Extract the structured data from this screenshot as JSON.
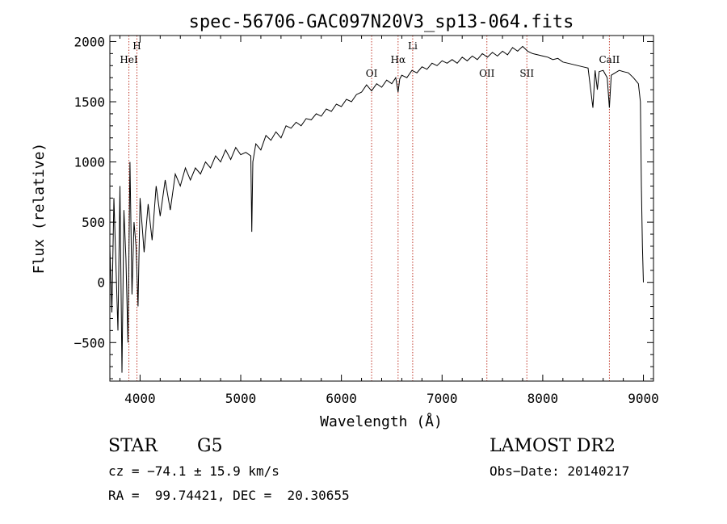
{
  "chart_data": {
    "type": "line",
    "title": "spec-56706-GAC097N20V3_sp13-064.fits",
    "xlabel": "Wavelength (Å)",
    "ylabel": "Flux (relative)",
    "xlim": [
      3700,
      9100
    ],
    "ylim": [
      -820,
      2050
    ],
    "xticks": [
      4000,
      5000,
      6000,
      7000,
      8000,
      9000
    ],
    "yticks": [
      -500,
      0,
      500,
      1000,
      1500,
      2000
    ],
    "grid": false,
    "series": [
      {
        "x": [
          3700,
          3720,
          3740,
          3760,
          3780,
          3800,
          3820,
          3840,
          3860,
          3880,
          3900,
          3920,
          3940,
          3960,
          3980,
          4000,
          4040,
          4080,
          4120,
          4160,
          4200,
          4250,
          4300,
          4350,
          4400,
          4450,
          4500,
          4550,
          4600,
          4650,
          4700,
          4750,
          4800,
          4850,
          4900,
          4950,
          5000,
          5050,
          5100,
          5110,
          5120,
          5150,
          5200,
          5250,
          5300,
          5350,
          5400,
          5450,
          5500,
          5550,
          5600,
          5650,
          5700,
          5750,
          5800,
          5850,
          5900,
          5950,
          6000,
          6050,
          6100,
          6150,
          6200,
          6250,
          6300,
          6350,
          6400,
          6450,
          6500,
          6540,
          6563,
          6580,
          6600,
          6650,
          6700,
          6750,
          6800,
          6850,
          6900,
          6950,
          7000,
          7050,
          7100,
          7150,
          7200,
          7250,
          7300,
          7350,
          7400,
          7450,
          7500,
          7550,
          7600,
          7650,
          7700,
          7750,
          7800,
          7850,
          7900,
          7950,
          8000,
          8050,
          8100,
          8150,
          8200,
          8250,
          8300,
          8350,
          8400,
          8450,
          8498,
          8520,
          8542,
          8560,
          8600,
          8640,
          8662,
          8680,
          8720,
          8760,
          8800,
          8850,
          8900,
          8950,
          8970,
          8980,
          8990,
          9000
        ],
        "y": [
          300,
          -250,
          700,
          150,
          -400,
          800,
          -750,
          600,
          200,
          -500,
          1000,
          -100,
          500,
          300,
          -200,
          700,
          250,
          650,
          350,
          800,
          550,
          850,
          600,
          900,
          800,
          950,
          850,
          950,
          900,
          1000,
          950,
          1050,
          1000,
          1100,
          1020,
          1120,
          1060,
          1080,
          1050,
          420,
          1000,
          1150,
          1100,
          1220,
          1180,
          1250,
          1200,
          1300,
          1280,
          1330,
          1300,
          1360,
          1350,
          1400,
          1380,
          1440,
          1420,
          1480,
          1460,
          1520,
          1500,
          1560,
          1580,
          1640,
          1590,
          1650,
          1620,
          1680,
          1650,
          1700,
          1580,
          1690,
          1720,
          1700,
          1760,
          1740,
          1790,
          1770,
          1820,
          1800,
          1840,
          1820,
          1850,
          1820,
          1870,
          1840,
          1880,
          1850,
          1900,
          1870,
          1910,
          1880,
          1920,
          1890,
          1950,
          1920,
          1960,
          1920,
          1900,
          1890,
          1880,
          1870,
          1850,
          1860,
          1830,
          1820,
          1810,
          1800,
          1790,
          1780,
          1450,
          1760,
          1600,
          1750,
          1760,
          1700,
          1450,
          1720,
          1740,
          1760,
          1750,
          1740,
          1700,
          1650,
          1500,
          800,
          300,
          0
        ]
      }
    ],
    "lines": [
      {
        "label": "HeI",
        "x": 3889
      },
      {
        "label": "H",
        "x": 3969
      },
      {
        "label": "OI",
        "x": 6300
      },
      {
        "label": "Hα",
        "x": 6563
      },
      {
        "label": "Li",
        "x": 6708
      },
      {
        "label": "OII",
        "x": 7445
      },
      {
        "label": "SII",
        "x": 7842
      },
      {
        "label": "CaII",
        "x": 8662
      }
    ]
  },
  "info": {
    "object_class": "STAR",
    "subclass": "G5",
    "survey": "LAMOST DR2",
    "redshift": "cz = −74.1 ± 15.9 km/s",
    "obs_date": "Obs−Date: 20140217",
    "coords": "RA =  99.74421, DEC =  20.30655"
  },
  "colors": {
    "spectrum": "#000000",
    "line_marker": "#c0392b"
  }
}
